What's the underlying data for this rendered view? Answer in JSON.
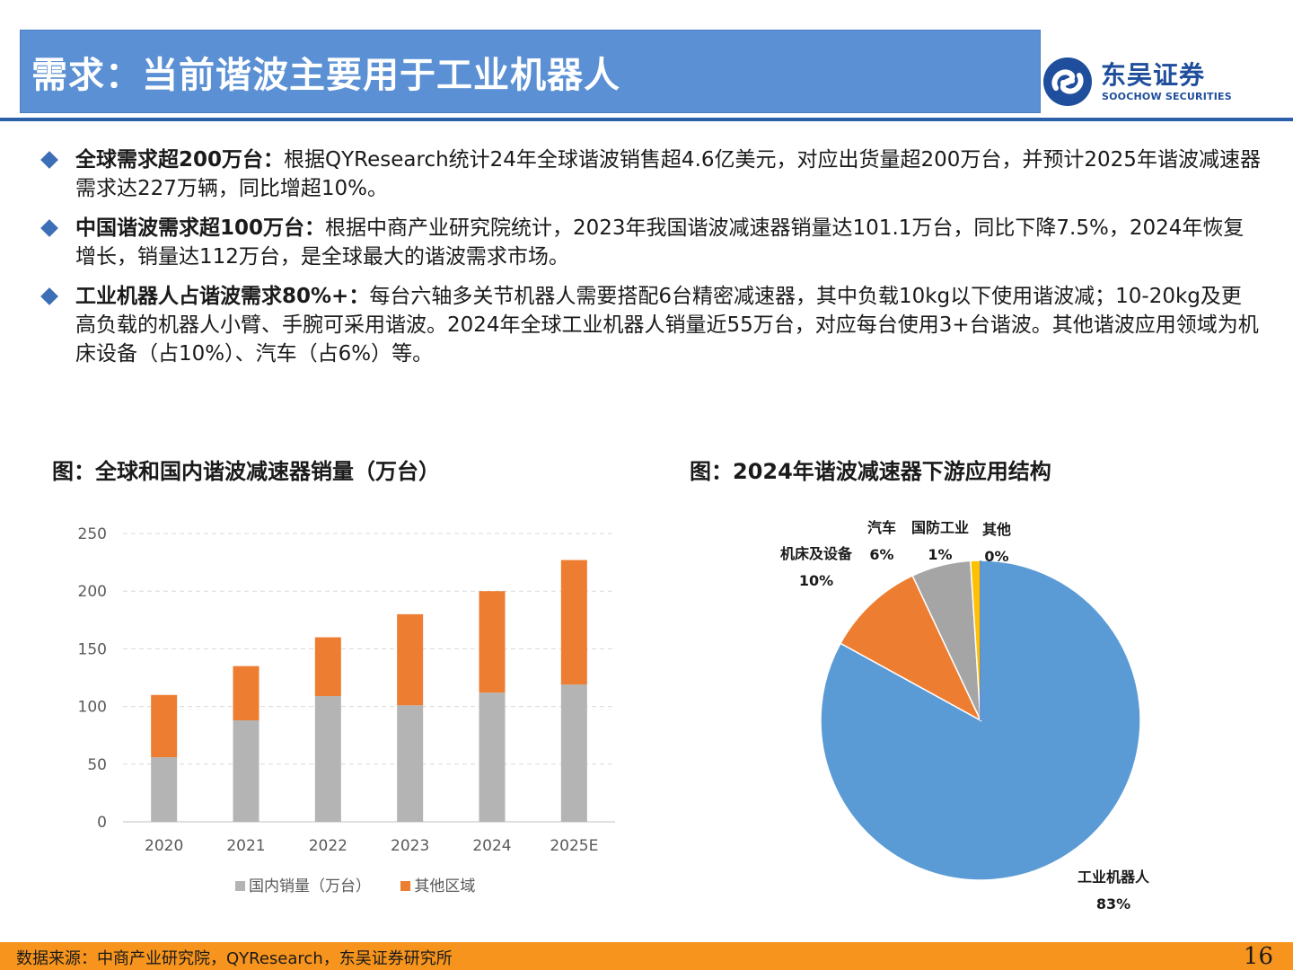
{
  "header": {
    "title": "需求：当前谐波主要用于工业机器人",
    "logo_cn": "东吴证券",
    "logo_en": "SOOCHOW SECURITIES"
  },
  "bullets": [
    {
      "lead": "全球需求超200万台：",
      "text": "根据QYResearch统计24年全球谐波销售超4.6亿美元，对应出货量超200万台，并预计2025年谐波减速器需求达227万辆，同比增超10%。"
    },
    {
      "lead": "中国谐波需求超100万台：",
      "text": "根据中商产业研究院统计，2023年我国谐波减速器销量达101.1万台，同比下降7.5%，2024年恢复增长，销量达112万台，是全球最大的谐波需求市场。"
    },
    {
      "lead": "工业机器人占谐波需求80%+：",
      "text": "每台六轴多关节机器人需要搭配6台精密减速器，其中负载10kg以下使用谐波减；10-20kg及更高负载的机器人小臂、手腕可采用谐波。2024年全球工业机器人销量近55万台，对应每台使用3+台谐波。其他谐波应用领域为机床设备（占10%）、汽车（占6%）等。"
    }
  ],
  "chart_data": [
    {
      "type": "bar",
      "stacked": true,
      "title": "图：全球和国内谐波减速器销量（万台）",
      "categories": [
        "2020",
        "2021",
        "2022",
        "2023",
        "2024",
        "2025E"
      ],
      "series": [
        {
          "name": "国内销量（万台）",
          "values": [
            56,
            88,
            109,
            101,
            112,
            119
          ],
          "color": "#b4b4b4"
        },
        {
          "name": "其他区域",
          "values": [
            54,
            47,
            51,
            79,
            88,
            108
          ],
          "color": "#ed7d31"
        }
      ],
      "ylim": [
        0,
        250
      ],
      "yticks": [
        0,
        50,
        100,
        150,
        200,
        250
      ],
      "grid": true,
      "legend": "bottom"
    },
    {
      "type": "pie",
      "title": "图：2024年谐波减速器下游应用结构",
      "slices": [
        {
          "label": "工业机器人",
          "pct_label": "83%",
          "value": 83,
          "color": "#5b9bd5"
        },
        {
          "label": "机床及设备",
          "pct_label": "10%",
          "value": 10,
          "color": "#ed7d31"
        },
        {
          "label": "汽车",
          "pct_label": "6%",
          "value": 6,
          "color": "#a5a5a5"
        },
        {
          "label": "国防工业",
          "pct_label": "1%",
          "value": 1,
          "color": "#ffc000"
        },
        {
          "label": "其他",
          "pct_label": "0%",
          "value": 0,
          "color": "#4472c4"
        }
      ]
    }
  ],
  "footer": {
    "source": "数据来源：中商产业研究院，QYResearch，东吴证券研究所",
    "page": "16"
  }
}
